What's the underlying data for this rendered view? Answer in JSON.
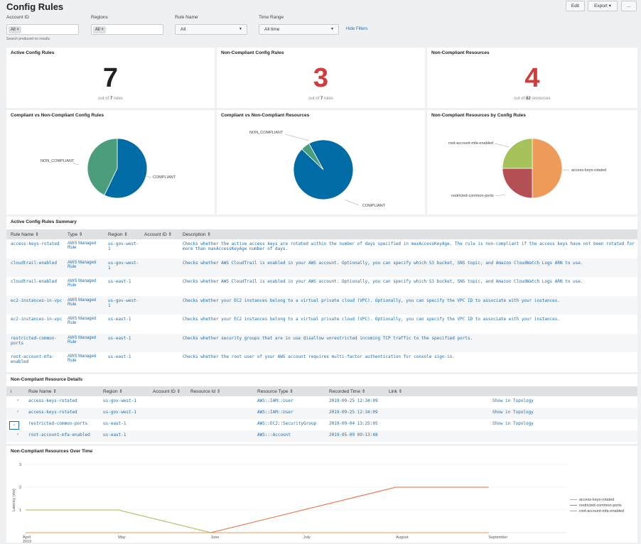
{
  "header": {
    "title": "Config Rules",
    "edit_label": "Edit",
    "export_label": "Export ▾",
    "more_label": "..."
  },
  "filters": {
    "account_id_label": "Account ID",
    "account_id_chip": "All ×",
    "account_hint": "Search produced no results",
    "regions_label": "Regions",
    "regions_chip": "All ×",
    "rule_name_label": "Rule Name",
    "rule_name_value": "All",
    "time_range_label": "Time Range",
    "time_range_value": "All time",
    "hide_filters": "Hide Filters"
  },
  "kpis": [
    {
      "title": "Active Config Rules",
      "value": "7",
      "sub_prefix": "out of ",
      "sub_value": "7",
      "sub_suffix": " rules",
      "color": "#222222"
    },
    {
      "title": "Non-Compliant Config Rules",
      "value": "3",
      "sub_prefix": "out of ",
      "sub_value": "7",
      "sub_suffix": " rules",
      "color": "#d43a3a"
    },
    {
      "title": "Non-Compliant Resources",
      "value": "4",
      "sub_prefix": "out of ",
      "sub_value": "82",
      "sub_suffix": " resources",
      "color": "#d43a3a"
    }
  ],
  "pies": [
    {
      "title": "Compliant vs Non-Compliant Config Rules",
      "slices": [
        {
          "label": "COMPLIANT",
          "value": 4,
          "color": "#006ba4"
        },
        {
          "label": "NON_COMPLIANT",
          "value": 3,
          "color": "#4b9e7c"
        }
      ]
    },
    {
      "title": "Compliant vs Non-Compliant Resources",
      "slices": [
        {
          "label": "COMPLIANT",
          "value": 78,
          "color": "#006ba4"
        },
        {
          "label": "NON_COMPLIANT",
          "value": 4,
          "color": "#4b9e7c"
        }
      ]
    },
    {
      "title": "Non-Compliant Resources by Config Rules",
      "slices": [
        {
          "label": "access-keys-rotated",
          "value": 2,
          "color": "#ee9b5a"
        },
        {
          "label": "restricted-common-ports",
          "value": 1,
          "color": "#b54f56"
        },
        {
          "label": "root-account-mfa-enabled",
          "value": 1,
          "color": "#a5c35a"
        }
      ]
    }
  ],
  "summary": {
    "title": "Active Config Rules Summary",
    "columns": [
      "Rule Name ⇕",
      "Type ⇕",
      "Region ⇕",
      "Account ID ⇕",
      "Description ⇕"
    ],
    "rows": [
      {
        "rule": "access-keys-rotated",
        "type": "AWS Managed Rule",
        "region": "us-gov-west-1",
        "account": "",
        "desc": "Checks whether the active access keys are rotated within the number of days specified in maxAccessKeyAge. The rule is non-compliant if the access keys have not been rotated for more than maxAccessKeyAge number of days."
      },
      {
        "rule": "cloudtrail-enabled",
        "type": "AWS Managed Rule",
        "region": "us-gov-west-1",
        "account": "",
        "desc": "Checks whether AWS CloudTrail is enabled in your AWS account. Optionally, you can specify which S3 bucket, SNS topic, and Amazon CloudWatch Logs ARN to use."
      },
      {
        "rule": "cloudtrail-enabled",
        "type": "AWS Managed Rule",
        "region": "us-east-1",
        "account": "",
        "desc": "Checks whether AWS CloudTrail is enabled in your AWS account. Optionally, you can specify which S3 bucket, SNS topic, and Amazon CloudWatch Logs ARN to use."
      },
      {
        "rule": "ec2-instances-in-vpc",
        "type": "AWS Managed Rule",
        "region": "us-gov-west-1",
        "account": "",
        "desc": "Checks whether your EC2 instances belong to a virtual private cloud (VPC). Optionally, you can specify the VPC ID to associate with your instances."
      },
      {
        "rule": "ec2-instances-in-vpc",
        "type": "AWS Managed Rule",
        "region": "us-east-1",
        "account": "",
        "desc": "Checks whether your EC2 instances belong to a virtual private cloud (VPC). Optionally, you can specify the VPC ID to associate with your instances."
      },
      {
        "rule": "restricted-common-ports",
        "type": "AWS Managed Rule",
        "region": "us-east-1",
        "account": "",
        "desc": "Checks whether security groups that are in use disallow unrestricted incoming TCP traffic to the specified ports."
      },
      {
        "rule": "root-account-mfa-enabled",
        "type": "AWS Managed Rule",
        "region": "us-east-1",
        "account": "",
        "desc": "Checks whether the root user of your AWS account requires multi-factor authentication for console sign-in."
      }
    ]
  },
  "details": {
    "title": "Non-Compliant Resource Details",
    "columns": [
      "i",
      "Rule Name ⇕",
      "Region ⇕",
      "Account ID ⇕",
      "Resource Id ⇕",
      "Resource Type ⇕",
      "Recorded Time ⇕",
      "Link ⇕"
    ],
    "rows": [
      {
        "expander": "›",
        "rule": "access-keys-rotated",
        "region": "us-gov-west-1",
        "account": "",
        "resource_id": "",
        "type": "AWS::IAM::User",
        "time": "2019-09-25 12:34:09",
        "link": "Show in Topology"
      },
      {
        "expander": "›",
        "rule": "access-keys-rotated",
        "region": "us-gov-west-1",
        "account": "",
        "resource_id": "",
        "type": "AWS::IAM::User",
        "time": "2019-09-25 12:34:09",
        "link": "Show in Topology"
      },
      {
        "expander": "›",
        "rule": "restricted-common-ports",
        "region": "us-east-1",
        "account": "",
        "resource_id": "",
        "type": "AWS::EC2::SecurityGroup",
        "time": "2019-09-04 13:25:05",
        "link": "Show in Topology"
      },
      {
        "expander": "›",
        "rule": "root-account-mfa-enabled",
        "region": "us-east-1",
        "account": "",
        "resource_id": "",
        "type": "AWS:::Account",
        "time": "2019-05-09 09:13:48",
        "link": ""
      }
    ]
  },
  "chart_data": {
    "type": "line",
    "title": "Non-Compliant Resources Over Time",
    "ylabel": "Latency (ms)",
    "ylim": [
      0,
      3
    ],
    "yticks": [
      "3",
      "2",
      "1"
    ],
    "x": [
      "April 2019",
      "May",
      "June",
      "July",
      "August",
      "September"
    ],
    "x_labels": [
      {
        "line1": "April",
        "line2": "2019"
      },
      {
        "line1": "May",
        "line2": ""
      },
      {
        "line1": "June",
        "line2": ""
      },
      {
        "line1": "July",
        "line2": ""
      },
      {
        "line1": "August",
        "line2": ""
      },
      {
        "line1": "September",
        "line2": ""
      }
    ],
    "series": [
      {
        "name": "access-keys-rotated",
        "color": "#ee9b5a",
        "values": [
          0,
          0,
          0,
          0,
          0,
          0
        ]
      },
      {
        "name": "restricted-common-ports",
        "color": "#e86a3a",
        "values": [
          null,
          null,
          0,
          1,
          2,
          2
        ]
      },
      {
        "name": "root-account-mfa-enabled",
        "color": "#a5b84a",
        "values": [
          1,
          1,
          0,
          null,
          null,
          null
        ]
      }
    ],
    "legend": "right"
  }
}
